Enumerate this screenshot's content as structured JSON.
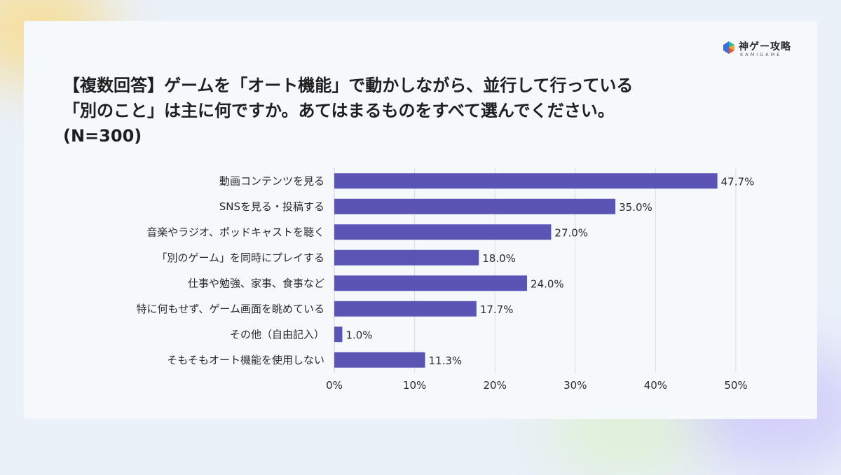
{
  "brand": {
    "name": "神ゲー攻略",
    "sub": "KAMIGAME",
    "colors": [
      "#2fb8a6",
      "#f0a91f",
      "#e2574c",
      "#3f6fd1"
    ]
  },
  "title": {
    "line1": "【複数回答】ゲームを「オート機能」で動かしながら、並行して行っている",
    "line2": "「別のこと」は主に何ですか。あてはまるものをすべて選んでください。",
    "line3": "(N=300)"
  },
  "chart_data": {
    "type": "bar",
    "orientation": "horizontal",
    "categories": [
      "動画コンテンツを見る",
      "SNSを見る・投稿する",
      "音楽やラジオ、ポッドキャストを聴く",
      "「別のゲーム」を同時にプレイする",
      "仕事や勉強、家事、食事など",
      "特に何もせず、ゲーム画面を眺めている",
      "その他（自由記入）",
      "そもそもオート機能を使用しない"
    ],
    "values": [
      47.7,
      35.0,
      27.0,
      18.0,
      24.0,
      17.7,
      1.0,
      11.3
    ],
    "value_labels": [
      "47.7%",
      "35.0%",
      "27.0%",
      "18.0%",
      "24.0%",
      "17.7%",
      "1.0%",
      "11.3%"
    ],
    "xlim": [
      0,
      50
    ],
    "xticks": [
      0,
      10,
      20,
      30,
      40,
      50
    ],
    "xtick_labels": [
      "0%",
      "10%",
      "20%",
      "30%",
      "40%",
      "50%"
    ],
    "grid": "vertical",
    "bar_color": "#5a55b5",
    "grid_color": "#d8dde4"
  }
}
